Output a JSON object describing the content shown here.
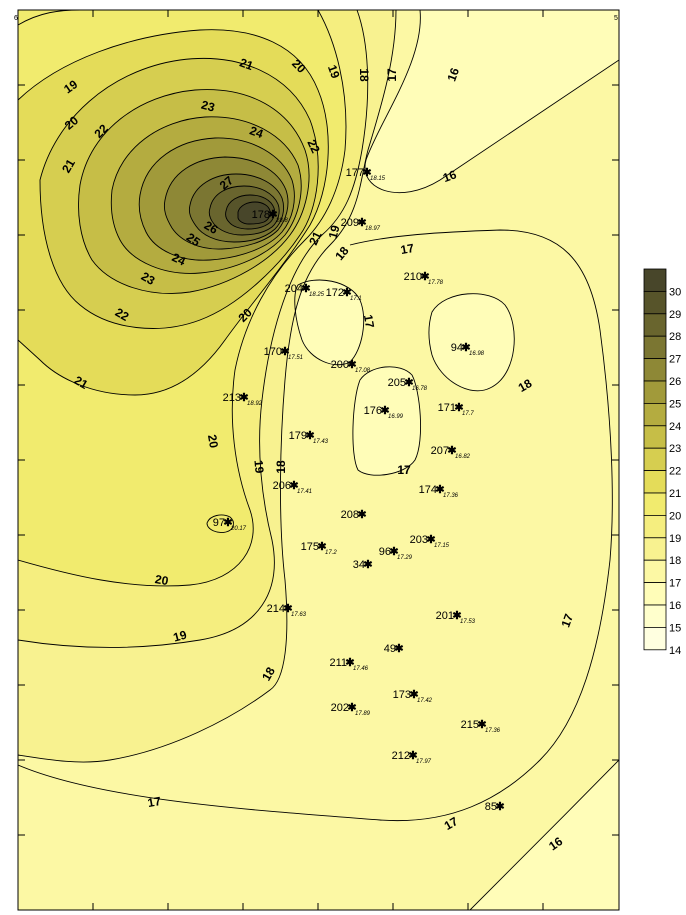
{
  "corner_labels": {
    "top_left": "6",
    "top_right": "5"
  },
  "colors": {
    "frame": "#000000",
    "contour_line": "#000000",
    "fills": {
      "14": "#FFFFE0",
      "15": "#FFFFCC",
      "16": "#FFFDB8",
      "17": "#FCF8A4",
      "18": "#F8F290",
      "19": "#F5EE7F",
      "20": "#F1EB6E",
      "21": "#E4DC59",
      "22": "#D6CE50",
      "23": "#C6BE47",
      "24": "#B4AC40",
      "25": "#A19A3A",
      "26": "#8E8836",
      "27": "#7B7632",
      "28": "#69652E",
      "29": "#57542A",
      "30": "#48462A"
    }
  },
  "legend": {
    "title": "",
    "levels": [
      "30",
      "29",
      "28",
      "27",
      "26",
      "25",
      "24",
      "23",
      "22",
      "21",
      "20",
      "19",
      "18",
      "17",
      "16",
      "15",
      "14"
    ]
  },
  "contour_labels": [
    {
      "text": "19"
    },
    {
      "text": "21"
    },
    {
      "text": "20"
    },
    {
      "text": "19"
    },
    {
      "text": "18"
    },
    {
      "text": "17"
    },
    {
      "text": "16"
    },
    {
      "text": "20"
    },
    {
      "text": "23"
    },
    {
      "text": "22"
    },
    {
      "text": "24"
    },
    {
      "text": "21"
    },
    {
      "text": "22"
    },
    {
      "text": "27"
    },
    {
      "text": "16"
    },
    {
      "text": "26"
    },
    {
      "text": "25"
    },
    {
      "text": "21"
    },
    {
      "text": "19"
    },
    {
      "text": "18"
    },
    {
      "text": "17"
    },
    {
      "text": "24"
    },
    {
      "text": "23"
    },
    {
      "text": "22"
    },
    {
      "text": "20"
    },
    {
      "text": "17"
    },
    {
      "text": "21"
    },
    {
      "text": "18"
    },
    {
      "text": "20"
    },
    {
      "text": "19"
    },
    {
      "text": "18"
    },
    {
      "text": "17"
    },
    {
      "text": "20"
    },
    {
      "text": "19"
    },
    {
      "text": "18"
    },
    {
      "text": "17"
    },
    {
      "text": "17"
    },
    {
      "text": "17"
    },
    {
      "text": "16"
    }
  ],
  "wells": [
    {
      "id": "177",
      "value": "18.15"
    },
    {
      "id": "178",
      "value": "28.8"
    },
    {
      "id": "209",
      "value": "18.97"
    },
    {
      "id": "210",
      "value": "17.78"
    },
    {
      "id": "204",
      "value": "18.25"
    },
    {
      "id": "172",
      "value": "17.1"
    },
    {
      "id": "94",
      "value": "16.98"
    },
    {
      "id": "170",
      "value": "17.51"
    },
    {
      "id": "200",
      "value": "17.08"
    },
    {
      "id": "205",
      "value": "16.78"
    },
    {
      "id": "213",
      "value": "18.92"
    },
    {
      "id": "176",
      "value": "16.99"
    },
    {
      "id": "171",
      "value": "17.7"
    },
    {
      "id": "179",
      "value": "17.43"
    },
    {
      "id": "207",
      "value": "16.82"
    },
    {
      "id": "206",
      "value": "17.41"
    },
    {
      "id": "174",
      "value": "17.36"
    },
    {
      "id": "208",
      "value": ""
    },
    {
      "id": "97",
      "value": "20.17"
    },
    {
      "id": "203",
      "value": "17.15"
    },
    {
      "id": "175",
      "value": "17.2"
    },
    {
      "id": "96",
      "value": "17.29"
    },
    {
      "id": "34",
      "value": ""
    },
    {
      "id": "214",
      "value": "17.63"
    },
    {
      "id": "201",
      "value": "17.53"
    },
    {
      "id": "49",
      "value": ""
    },
    {
      "id": "211",
      "value": "17.46"
    },
    {
      "id": "173",
      "value": "17.42"
    },
    {
      "id": "202",
      "value": "17.89"
    },
    {
      "id": "215",
      "value": "17.36"
    },
    {
      "id": "212",
      "value": "17.97"
    },
    {
      "id": "85",
      "value": ""
    }
  ]
}
